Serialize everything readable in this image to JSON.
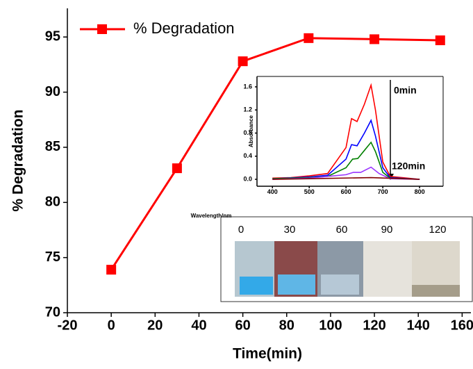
{
  "chart_data": [
    {
      "type": "line",
      "x_label": "Time(min)",
      "y_label": "% Degradation",
      "x": [
        0,
        30,
        60,
        90,
        120,
        150
      ],
      "series": [
        {
          "name": "% Degradation",
          "color": "#ff0000",
          "marker": "square",
          "values": [
            73.9,
            83.1,
            92.8,
            94.9,
            94.8,
            94.7
          ]
        }
      ],
      "xlim": [
        -20,
        164
      ],
      "xticks": [
        -20,
        0,
        20,
        40,
        60,
        80,
        100,
        120,
        140,
        160
      ],
      "ylim": [
        70,
        97.6
      ],
      "yticks": [
        70,
        75,
        80,
        85,
        90,
        95
      ],
      "legend": "top-left"
    },
    {
      "type": "line",
      "x_label": "Wavelength/nm",
      "y_label": "Absorbance",
      "annotations": [
        "0min",
        "120min"
      ],
      "series": [
        {
          "color": "#ff0000",
          "x": [
            400,
            450,
            500,
            550,
            600,
            615,
            630,
            650,
            668,
            680,
            700,
            720,
            800
          ],
          "values": [
            0.02,
            0.03,
            0.06,
            0.1,
            0.55,
            1.05,
            1.0,
            1.3,
            1.63,
            1.2,
            0.3,
            0.05,
            0.0
          ]
        },
        {
          "color": "#0000ff",
          "x": [
            400,
            500,
            550,
            600,
            615,
            630,
            650,
            668,
            680,
            700,
            720,
            800
          ],
          "values": [
            0.01,
            0.04,
            0.07,
            0.35,
            0.6,
            0.58,
            0.8,
            1.02,
            0.75,
            0.2,
            0.03,
            0.0
          ]
        },
        {
          "color": "#008000",
          "x": [
            400,
            500,
            550,
            600,
            618,
            632,
            650,
            668,
            680,
            700,
            720,
            800
          ],
          "values": [
            0.01,
            0.03,
            0.05,
            0.2,
            0.35,
            0.36,
            0.5,
            0.64,
            0.48,
            0.12,
            0.02,
            0.0
          ]
        },
        {
          "color": "#9933ff",
          "x": [
            400,
            500,
            600,
            620,
            640,
            668,
            690,
            720,
            800
          ],
          "values": [
            0.0,
            0.02,
            0.08,
            0.12,
            0.12,
            0.21,
            0.1,
            0.01,
            0.0
          ]
        },
        {
          "color": "#800000",
          "x": [
            400,
            500,
            668,
            800
          ],
          "values": [
            0.0,
            0.01,
            0.03,
            0.0
          ]
        }
      ],
      "xlim": [
        358,
        864
      ],
      "xticks": [
        400,
        500,
        600,
        700,
        800
      ],
      "ylim": [
        -0.12,
        1.78
      ],
      "yticks": [
        {
          "value": 0,
          "label": "0.0"
        },
        {
          "value": 0.4,
          "label": "0.4"
        },
        {
          "value": 0.8,
          "label": "0.8"
        },
        {
          "value": 1.2,
          "label": "1.2"
        },
        {
          "value": 1.6,
          "label": "1.6"
        }
      ]
    }
  ],
  "photo": {
    "labels": [
      "0",
      "30",
      "60",
      "90",
      "120"
    ]
  }
}
